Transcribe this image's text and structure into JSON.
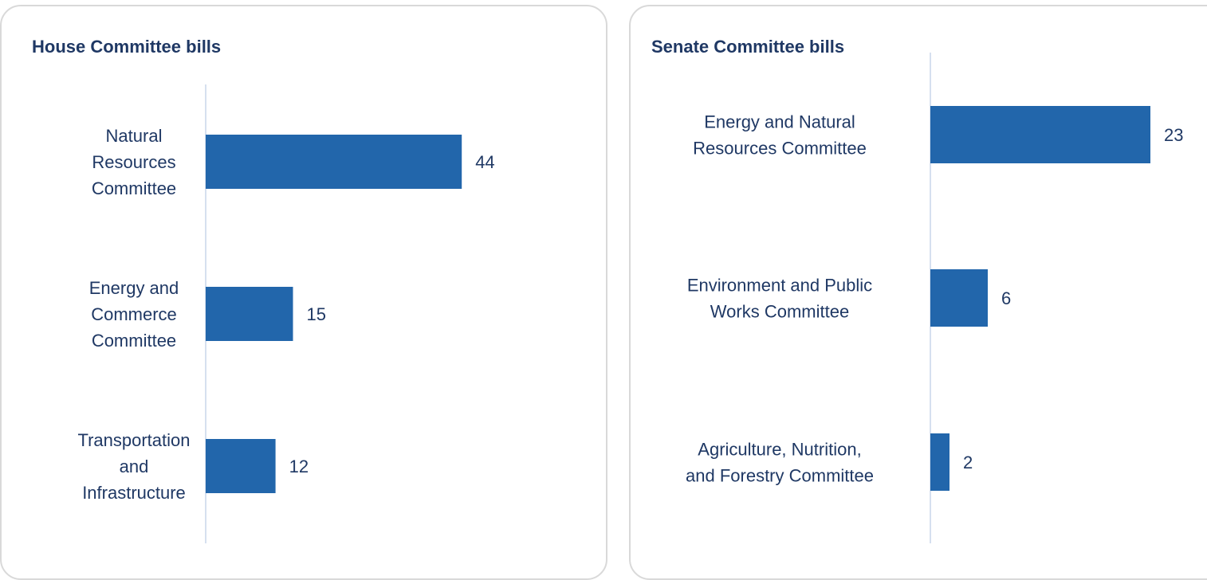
{
  "chart_data": [
    {
      "type": "bar",
      "orientation": "horizontal",
      "title": "House Committee bills",
      "categories": [
        [
          "Natural",
          "Resources",
          "Committee"
        ],
        [
          "Energy and",
          "Commerce",
          "Committee"
        ],
        [
          "Transportation",
          "and",
          "Infrastructure"
        ]
      ],
      "values": [
        44,
        15,
        12
      ],
      "data_labels": [
        "44",
        "15",
        "12"
      ],
      "xlim": [
        0,
        60
      ],
      "grid": false,
      "legend": "none",
      "bar_color": "#2266ab",
      "axis_color": "#c9d6ea"
    },
    {
      "type": "bar",
      "orientation": "horizontal",
      "title": "Senate Committee bills",
      "categories": [
        [
          "Energy and Natural",
          "Resources Committee"
        ],
        [
          "Environment and Public",
          "Works Committee"
        ],
        [
          "Agriculture, Nutrition,",
          "and Forestry Committee"
        ]
      ],
      "values": [
        23,
        6,
        2
      ],
      "data_labels": [
        "23",
        "6",
        "2"
      ],
      "xlim": [
        0,
        24.5
      ],
      "grid": false,
      "legend": "none",
      "bar_color": "#2266ab",
      "axis_color": "#c9d6ea"
    }
  ]
}
